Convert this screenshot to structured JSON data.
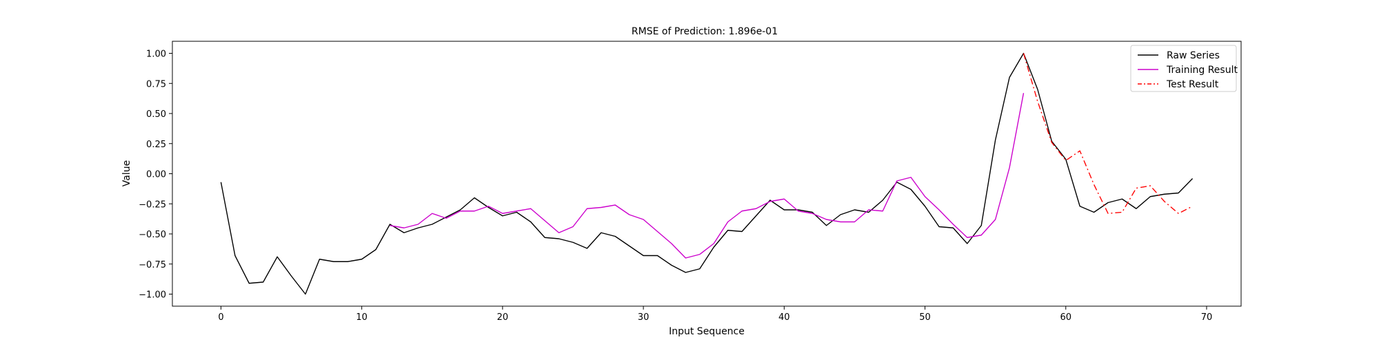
{
  "chart_data": {
    "type": "line",
    "title": "RMSE of Prediction: 1.896e-01",
    "xlabel": "Input Sequence",
    "ylabel": "Value",
    "xlim": [
      -3.45,
      72.45
    ],
    "ylim": [
      -1.1,
      1.1
    ],
    "x_ticks": [
      0,
      10,
      20,
      30,
      40,
      50,
      60,
      70
    ],
    "x_tick_labels": [
      "0",
      "10",
      "20",
      "30",
      "40",
      "50",
      "60",
      "70"
    ],
    "y_ticks": [
      1.0,
      0.75,
      0.5,
      0.25,
      0.0,
      -0.25,
      -0.5,
      -0.75,
      -1.0
    ],
    "y_tick_labels": [
      "1.00",
      "0.75",
      "0.50",
      "0.25",
      "0.00",
      "−0.25",
      "−0.50",
      "−0.75",
      "−1.00"
    ],
    "grid": false,
    "legend_position": "top-right",
    "series": [
      {
        "name": "Raw Series",
        "color": "#000000",
        "style": "solid",
        "x_start": 0,
        "values": [
          -0.07,
          -0.68,
          -0.91,
          -0.9,
          -0.69,
          -0.85,
          -1.0,
          -0.71,
          -0.73,
          -0.73,
          -0.71,
          -0.63,
          -0.42,
          -0.49,
          -0.45,
          -0.42,
          -0.36,
          -0.3,
          -0.2,
          -0.28,
          -0.35,
          -0.32,
          -0.4,
          -0.53,
          -0.54,
          -0.57,
          -0.62,
          -0.49,
          -0.52,
          -0.6,
          -0.68,
          -0.68,
          -0.76,
          -0.82,
          -0.79,
          -0.61,
          -0.47,
          -0.48,
          -0.35,
          -0.22,
          -0.3,
          -0.3,
          -0.32,
          -0.43,
          -0.34,
          -0.3,
          -0.32,
          -0.22,
          -0.07,
          -0.13,
          -0.27,
          -0.44,
          -0.45,
          -0.58,
          -0.43,
          0.28,
          0.8,
          1.0,
          0.7,
          0.27,
          0.12,
          -0.27,
          -0.32,
          -0.24,
          -0.21,
          -0.29,
          -0.19,
          -0.17,
          -0.16,
          -0.04
        ]
      },
      {
        "name": "Training Result",
        "color": "#cc00cc",
        "style": "solid",
        "x_start": 12,
        "values": [
          -0.43,
          -0.45,
          -0.42,
          -0.33,
          -0.37,
          -0.31,
          -0.31,
          -0.27,
          -0.33,
          -0.31,
          -0.29,
          -0.39,
          -0.49,
          -0.44,
          -0.29,
          -0.28,
          -0.26,
          -0.34,
          -0.38,
          -0.48,
          -0.58,
          -0.7,
          -0.67,
          -0.58,
          -0.4,
          -0.31,
          -0.29,
          -0.23,
          -0.21,
          -0.31,
          -0.33,
          -0.38,
          -0.4,
          -0.4,
          -0.3,
          -0.31,
          -0.06,
          -0.03,
          -0.19,
          -0.3,
          -0.42,
          -0.53,
          -0.51,
          -0.38,
          0.05,
          0.67
        ]
      },
      {
        "name": "Test Result",
        "color": "#ff0000",
        "style": "dashdot",
        "x_start": 57,
        "values": [
          1.0,
          0.6,
          0.26,
          0.11,
          0.19,
          -0.09,
          -0.33,
          -0.32,
          -0.12,
          -0.1,
          -0.23,
          -0.33,
          -0.27
        ]
      }
    ]
  }
}
